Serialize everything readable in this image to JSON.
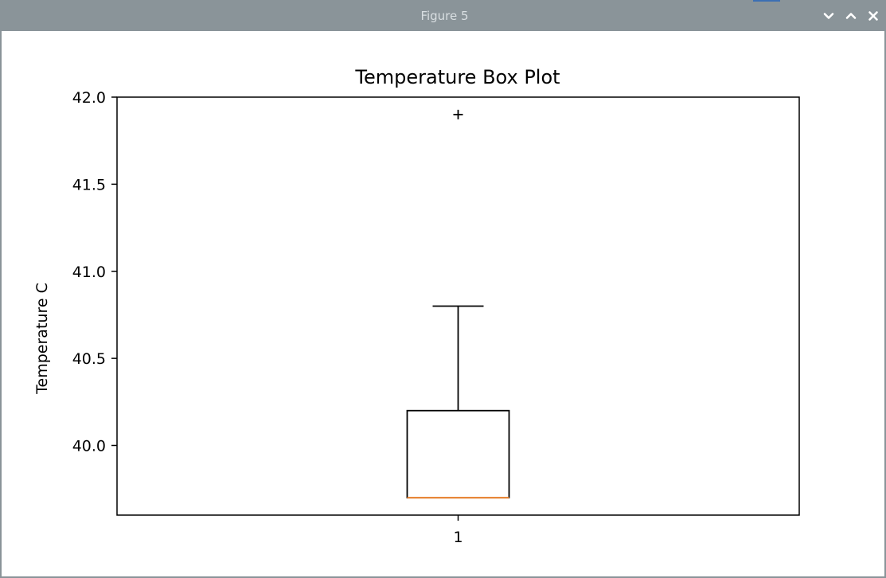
{
  "window": {
    "title": "Figure 5",
    "controls": {
      "minimize_icon": "chevron-down-icon",
      "maximize_icon": "chevron-up-icon",
      "close_icon": "close-icon"
    },
    "titlebar_color": "#8a9499"
  },
  "chart_data": {
    "type": "boxplot",
    "title": "Temperature Box Plot",
    "xlabel": "",
    "ylabel": "Temperature C",
    "categories": [
      "1"
    ],
    "boxes": [
      {
        "category": "1",
        "min": 39.7,
        "q1": 39.7,
        "median": 39.7,
        "q3": 40.2,
        "whisker_low": 39.7,
        "whisker_high": 40.8,
        "outliers": [
          41.9
        ]
      }
    ],
    "ylim": [
      39.6,
      42.0
    ],
    "yticks": [
      40.0,
      40.5,
      41.0,
      41.5,
      42.0
    ],
    "ytick_labels": [
      "40.0",
      "40.5",
      "41.0",
      "41.5",
      "42.0"
    ],
    "grid": false,
    "colors": {
      "box": "#000000",
      "median": "#e8883a",
      "outlier_marker": "#000000"
    }
  }
}
